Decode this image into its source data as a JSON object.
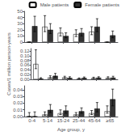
{
  "chart_data": [
    {
      "type": "bar",
      "categories": [
        "0-4",
        "5-14",
        "15-24",
        "25-44",
        "45-64",
        "≥65"
      ],
      "series": [
        {
          "name": "Male patients",
          "color": "white",
          "values": [
            0,
            25,
            15,
            13,
            17,
            0
          ],
          "error_low": [
            0,
            8,
            5,
            4,
            5,
            0
          ],
          "error_high": [
            0,
            18,
            8,
            7,
            8,
            0
          ]
        },
        {
          "name": "Female patients",
          "color": "#333333",
          "values": [
            26,
            20,
            10,
            15,
            25,
            11
          ],
          "error_low": [
            9,
            6,
            3,
            5,
            8,
            4
          ],
          "error_high": [
            16,
            10,
            5,
            7,
            13,
            7
          ]
        }
      ],
      "ylim": [
        0,
        50
      ],
      "yticks": [
        0,
        10,
        20,
        30,
        40,
        50
      ],
      "grid": false,
      "legend": "top",
      "tick_labels": "y"
    },
    {
      "type": "bar",
      "categories": [
        "0-4",
        "5-14",
        "15-24",
        "25-44",
        "45-64",
        "≥65"
      ],
      "ylabel": "Cases/1 million person-years",
      "series": [
        {
          "name": "Male patients",
          "color": "white",
          "values": [
            0.065,
            0.008,
            0.008,
            0.003,
            0.005,
            0.006
          ],
          "error_low": [
            0.02,
            0.003,
            0.003,
            0.001,
            0.002,
            0.002
          ],
          "error_high": [
            0.06,
            0.007,
            0.005,
            0.003,
            0.004,
            0.005
          ]
        },
        {
          "name": "Female patients",
          "color": "#333333",
          "values": [
            0.003,
            0.015,
            0.006,
            0.006,
            0.007,
            0.007
          ],
          "error_low": [
            0.001,
            0.005,
            0.002,
            0.002,
            0.002,
            0.003
          ],
          "error_high": [
            0.004,
            0.01,
            0.005,
            0.004,
            0.004,
            0.006
          ]
        }
      ],
      "ylim": [
        0,
        0.13
      ],
      "yticks": [
        {
          "value": 0,
          "label": "0.00"
        },
        {
          "value": 0.02,
          "label": "0.02"
        },
        {
          "value": 0.04,
          "label": "0.04"
        },
        {
          "value": 0.06,
          "label": "0.06"
        },
        {
          "value": 0.08,
          "label": "0.08"
        },
        {
          "value": 0.1,
          "label": "0.10"
        },
        {
          "value": 0.12,
          "label": "0.12"
        }
      ],
      "grid": false,
      "tick_labels": "y"
    },
    {
      "type": "bar",
      "categories": [
        "0-4",
        "5-14",
        "15-24",
        "25-44",
        "45-64",
        "≥65"
      ],
      "xlabel": "Age group, y",
      "series": [
        {
          "name": "Male patients",
          "color": "white",
          "values": [
            0,
            0.003,
            0.005,
            0.003,
            0.005,
            0.008
          ],
          "error_low": [
            0,
            0.001,
            0.002,
            0.001,
            0.002,
            0.003
          ],
          "error_high": [
            0.006,
            0.004,
            0.005,
            0.003,
            0.004,
            0.008
          ]
        },
        {
          "name": "Female patients",
          "color": "#333333",
          "values": [
            0,
            0.01,
            0.009,
            0.008,
            0.012,
            0.026
          ],
          "error_low": [
            0,
            0.004,
            0.004,
            0.003,
            0.005,
            0.01
          ],
          "error_high": [
            0.007,
            0.008,
            0.007,
            0.005,
            0.009,
            0.015
          ]
        }
      ],
      "ylim": [
        0,
        0.046
      ],
      "yticks": [
        {
          "value": 0,
          "label": "0.00"
        },
        {
          "value": 0.01,
          "label": "0.01"
        },
        {
          "value": 0.02,
          "label": "0.02"
        },
        {
          "value": 0.03,
          "label": "0.03"
        },
        {
          "value": 0.04,
          "label": "0.04"
        }
      ],
      "grid": false
    }
  ]
}
